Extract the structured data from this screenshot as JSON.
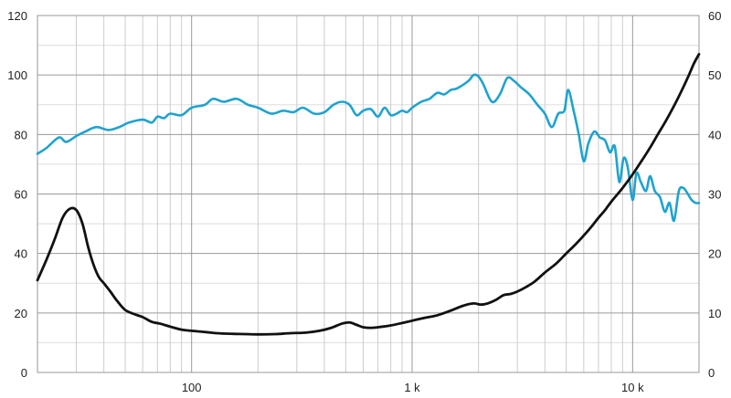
{
  "chart_data": {
    "type": "line",
    "title": "",
    "xlabel": "",
    "ylabel": "",
    "y2label": "",
    "x_scale": "log",
    "xlim": [
      20,
      20000
    ],
    "ylim": [
      0,
      120
    ],
    "y2lim": [
      0,
      60
    ],
    "grid": true,
    "legend": "none",
    "x_tick_values": [
      100,
      1000,
      10000
    ],
    "x_tick_labels": [
      "100",
      "1 k",
      "10 k"
    ],
    "y_ticks": [
      "0",
      "20",
      "40",
      "60",
      "80",
      "100",
      "120"
    ],
    "y2_ticks": [
      "0",
      "10",
      "20",
      "30",
      "40",
      "50",
      "60"
    ],
    "series": [
      {
        "color": "#1fa3cf",
        "axis": "left",
        "x": [
          20,
          22,
          25,
          27,
          30,
          33,
          37,
          42,
          47,
          52,
          60,
          66,
          70,
          75,
          80,
          90,
          100,
          115,
          125,
          140,
          160,
          180,
          200,
          230,
          260,
          290,
          320,
          360,
          400,
          440,
          480,
          520,
          560,
          600,
          650,
          700,
          750,
          800,
          850,
          900,
          950,
          1000,
          1100,
          1200,
          1300,
          1400,
          1500,
          1600,
          1800,
          1900,
          2000,
          2100,
          2300,
          2500,
          2700,
          2900,
          3100,
          3400,
          3700,
          4000,
          4300,
          4600,
          4900,
          5100,
          5400,
          5700,
          6000,
          6300,
          6700,
          7100,
          7500,
          7900,
          8300,
          8700,
          9100,
          9500,
          10000,
          10400,
          10900,
          11500,
          12000,
          12600,
          13300,
          14000,
          14700,
          15400,
          16200,
          17000,
          17800,
          18500,
          19300,
          20000
        ],
        "values": [
          73.5,
          75.5,
          79,
          77.5,
          79.5,
          81,
          82.5,
          81.5,
          82.5,
          84,
          85,
          84,
          86,
          85.5,
          87,
          86.5,
          89,
          90,
          92,
          91,
          92,
          90,
          89,
          87,
          88,
          87.5,
          89,
          87,
          87.5,
          90,
          91,
          90,
          86.5,
          88,
          88.5,
          86,
          89,
          86.5,
          87,
          88,
          87.5,
          89,
          91,
          92,
          94,
          93.5,
          95,
          95.5,
          98,
          100,
          99.5,
          97,
          91,
          93.5,
          99,
          98,
          96,
          93.5,
          90,
          87,
          82.5,
          87,
          88,
          95,
          88,
          80,
          71,
          77,
          81,
          79,
          78,
          74,
          76,
          64,
          72,
          69,
          58,
          67,
          64,
          61,
          66,
          61,
          59,
          54,
          57,
          51,
          61,
          62,
          60,
          58,
          57,
          57
        ]
      },
      {
        "color": "#111111",
        "axis": "right",
        "x": [
          20,
          22,
          24,
          26,
          28,
          30,
          32,
          34,
          36,
          38,
          40,
          43,
          46,
          50,
          55,
          60,
          66,
          72,
          80,
          90,
          100,
          115,
          130,
          150,
          175,
          200,
          240,
          280,
          330,
          380,
          430,
          480,
          520,
          560,
          600,
          650,
          700,
          800,
          900,
          1000,
          1150,
          1300,
          1500,
          1700,
          1900,
          2050,
          2200,
          2400,
          2600,
          2800,
          3000,
          3300,
          3600,
          4000,
          4500,
          5000,
          5500,
          6000,
          6500,
          7000,
          7500,
          8000,
          9000,
          10000,
          11000,
          12000,
          13000,
          14000,
          15000,
          16000,
          17000,
          18000,
          19000,
          20000
        ],
        "values": [
          15.5,
          19,
          22.5,
          26,
          27.5,
          27.3,
          25,
          21,
          18,
          16,
          15,
          13.5,
          12,
          10.5,
          9.8,
          9.3,
          8.5,
          8.2,
          7.7,
          7.2,
          7.0,
          6.8,
          6.6,
          6.5,
          6.45,
          6.4,
          6.45,
          6.6,
          6.7,
          7.0,
          7.5,
          8.2,
          8.4,
          8.0,
          7.6,
          7.5,
          7.6,
          7.9,
          8.3,
          8.7,
          9.2,
          9.6,
          10.4,
          11.2,
          11.6,
          11.4,
          11.6,
          12.2,
          13.0,
          13.2,
          13.6,
          14.4,
          15.3,
          16.8,
          18.3,
          20.0,
          21.5,
          23.0,
          24.5,
          26.0,
          27.3,
          28.7,
          31.0,
          33.3,
          35.6,
          37.8,
          40.0,
          42.0,
          44.0,
          46.0,
          48.0,
          50.0,
          52.0,
          53.5
        ]
      }
    ]
  }
}
